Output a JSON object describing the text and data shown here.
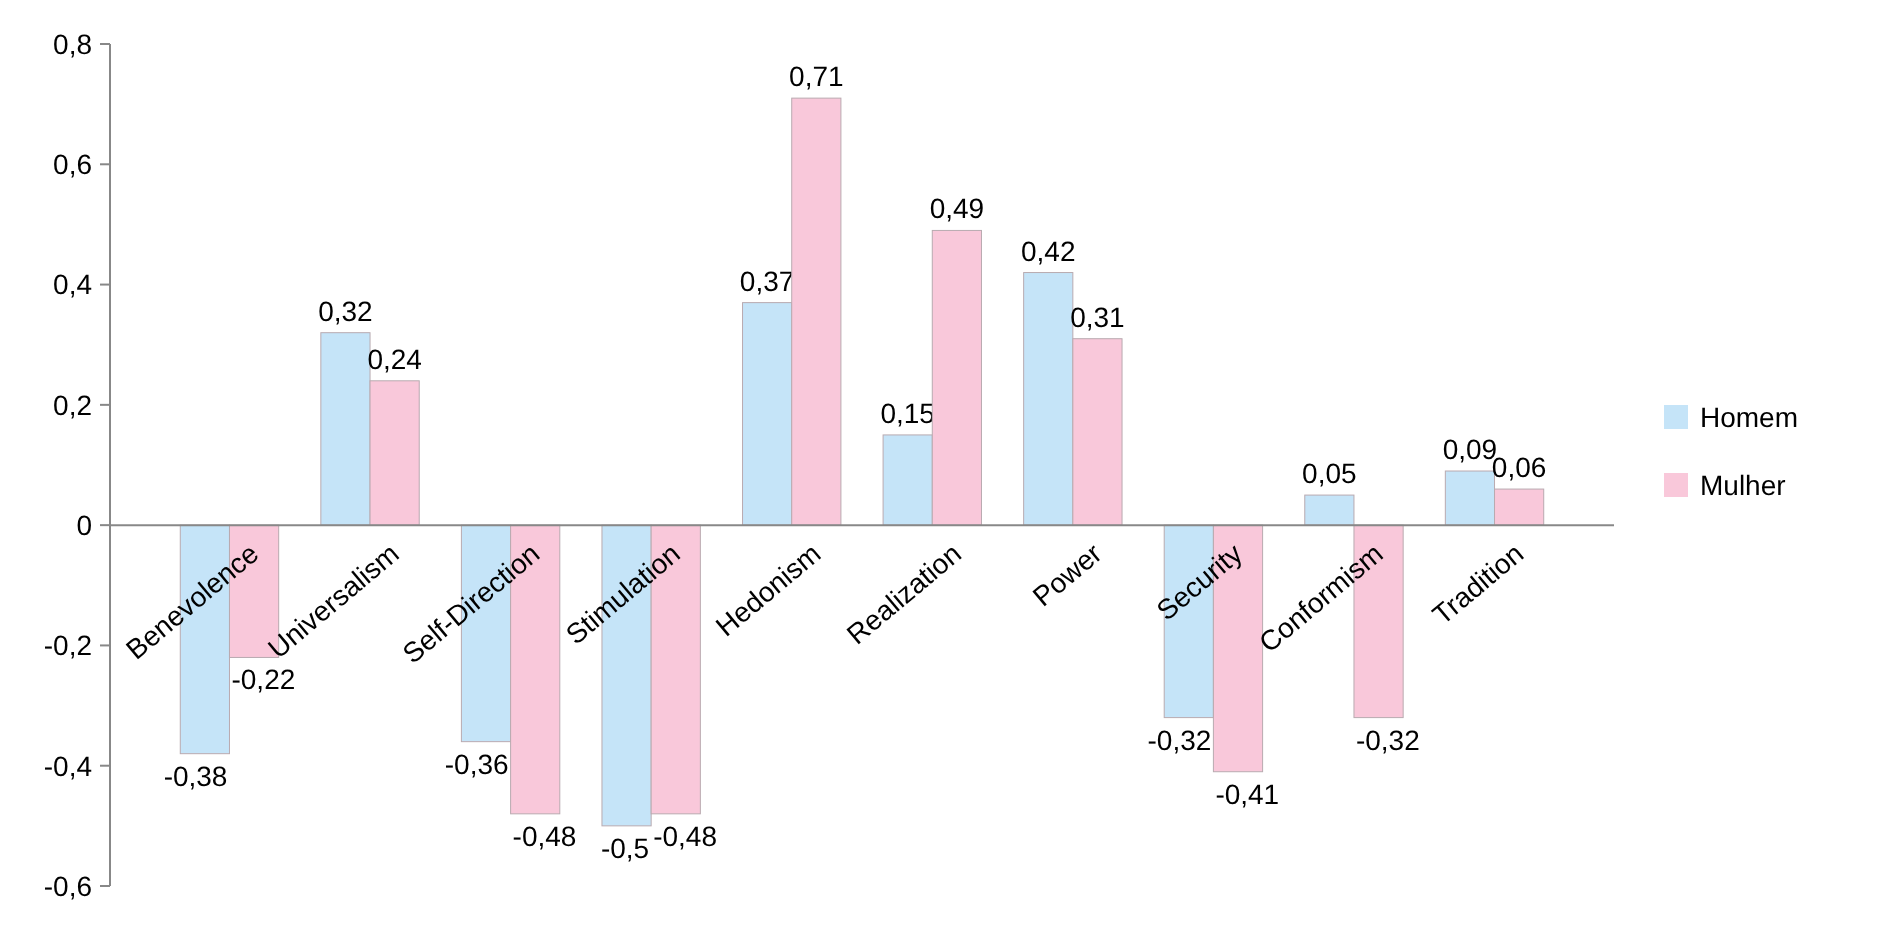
{
  "chart_data": {
    "type": "bar",
    "categories": [
      "Benevolence",
      "Universalism",
      "Self-Direction",
      "Stimulation",
      "Hedonism",
      "Realization",
      "Power",
      "Security",
      "Conformism",
      "Tradition"
    ],
    "series": [
      {
        "name": "Homem",
        "color": "#c5e4f8",
        "values": [
          -0.38,
          0.32,
          -0.36,
          -0.5,
          0.37,
          0.15,
          0.42,
          -0.32,
          0.05,
          0.09
        ],
        "value_labels": [
          "-0,38",
          "0,32",
          "-0,36",
          "-0,5",
          "0,37",
          "0,15",
          "0,42",
          "-0,32",
          "0,05",
          "0,09"
        ]
      },
      {
        "name": "Mulher",
        "color": "#f9c8da",
        "values": [
          -0.22,
          0.24,
          -0.48,
          -0.48,
          0.71,
          0.49,
          0.31,
          -0.41,
          -0.32,
          0.06
        ],
        "value_labels": [
          "-0,22",
          "0,24",
          "-0,48",
          "-0,48",
          "0,71",
          "0,49",
          "0,31",
          "-0,41",
          "-0,32",
          "0,06"
        ]
      }
    ],
    "ylim": [
      -0.6,
      0.8
    ],
    "yticks": [
      {
        "value": -0.6,
        "label": "-0,6"
      },
      {
        "value": -0.4,
        "label": "-0,4"
      },
      {
        "value": -0.2,
        "label": "-0,2"
      },
      {
        "value": 0,
        "label": "0"
      },
      {
        "value": 0.2,
        "label": "0,2"
      },
      {
        "value": 0.4,
        "label": "0,4"
      },
      {
        "value": 0.6,
        "label": "0,6"
      },
      {
        "value": 0.8,
        "label": "0,8"
      }
    ],
    "grid": false,
    "legend": "right"
  }
}
